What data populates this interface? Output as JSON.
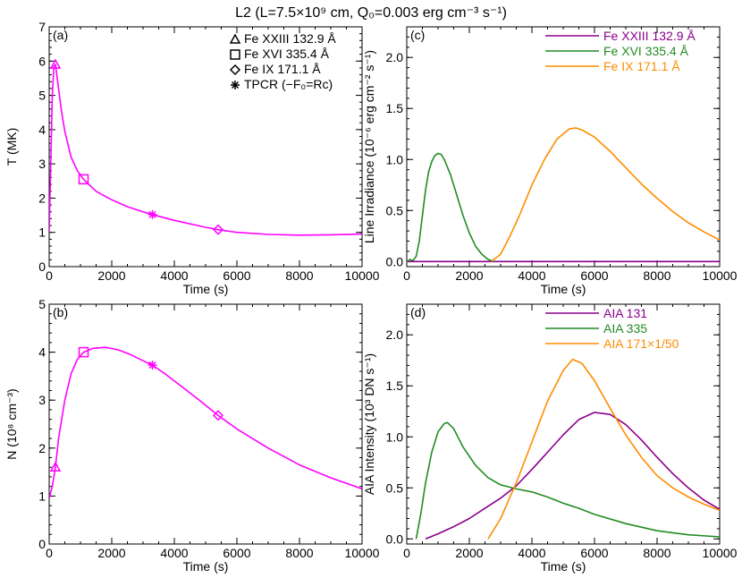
{
  "chart_data": {
    "type": "line",
    "title": "L2 (L=7.5×10⁹ cm, Q₀=0.003 erg cm⁻³ s⁻¹)",
    "panels": [
      {
        "label": "(a)",
        "xlabel": "Time (s)",
        "ylabel": "T (MK)",
        "xlim": [
          0,
          10000
        ],
        "ylim": [
          0,
          7
        ],
        "xticks": [
          0,
          2000,
          4000,
          6000,
          8000,
          10000
        ],
        "yticks": [
          0,
          1,
          2,
          3,
          4,
          5,
          6,
          7
        ],
        "series": [
          {
            "name": "T",
            "color": "#ff00ff",
            "x": [
              0,
              50,
              100,
              150,
              200,
              300,
              400,
              500,
              700,
              900,
              1100,
              1500,
              2000,
              2500,
              3000,
              3300,
              4000,
              5000,
              5400,
              6000,
              7000,
              8000,
              9000,
              10000
            ],
            "y": [
              1.0,
              3.0,
              5.0,
              5.85,
              5.9,
              5.2,
              4.5,
              3.95,
              3.2,
              2.8,
              2.55,
              2.2,
              1.95,
              1.75,
              1.6,
              1.52,
              1.35,
              1.15,
              1.08,
              1.0,
              0.94,
              0.92,
              0.93,
              0.95
            ]
          }
        ],
        "markers": [
          {
            "name": "Fe XXIII 132.9 Å",
            "symbol": "triangle",
            "x": 200,
            "y": 5.9
          },
          {
            "name": "Fe XVI 335.4 Å",
            "symbol": "square",
            "x": 1100,
            "y": 2.55
          },
          {
            "name": "Fe IX 171.1 Å",
            "symbol": "diamond",
            "x": 5400,
            "y": 1.08
          },
          {
            "name": "TPCR (−F₀=Rc)",
            "symbol": "asterisk",
            "x": 3300,
            "y": 1.52
          }
        ],
        "legend": [
          {
            "label": "Fe XXIII 132.9 Å",
            "symbol": "triangle"
          },
          {
            "label": "Fe XVI 335.4 Å",
            "symbol": "square"
          },
          {
            "label": "Fe IX 171.1 Å",
            "symbol": "diamond"
          },
          {
            "label": "TPCR (−F₀=Rc)",
            "symbol": "asterisk"
          }
        ]
      },
      {
        "label": "(c)",
        "xlabel": "Time (s)",
        "ylabel": "Line Irradiance (10⁻⁶ erg cm⁻² s⁻¹)",
        "xlim": [
          0,
          10000
        ],
        "ylim": [
          -0.05,
          2.3
        ],
        "xticks": [
          0,
          2000,
          4000,
          6000,
          8000,
          10000
        ],
        "yticks": [
          0.0,
          0.5,
          1.0,
          1.5,
          2.0
        ],
        "series": [
          {
            "name": "Fe XXIII 132.9 Å",
            "color": "#8b008b",
            "x": [
              0,
              2000,
              4000,
              6000,
              8000,
              10000
            ],
            "y": [
              0,
              0,
              0,
              0,
              0,
              0
            ]
          },
          {
            "name": "Fe XVI 335.4 Å",
            "color": "#228b22",
            "x": [
              0,
              100,
              200,
              300,
              400,
              500,
              600,
              700,
              800,
              900,
              1000,
              1100,
              1200,
              1400,
              1600,
              1800,
              2000,
              2200,
              2400,
              2600,
              2800
            ],
            "y": [
              0,
              0.02,
              0.01,
              0.05,
              0.2,
              0.45,
              0.7,
              0.88,
              0.98,
              1.04,
              1.06,
              1.05,
              1.0,
              0.85,
              0.65,
              0.45,
              0.28,
              0.15,
              0.07,
              0.02,
              0
            ]
          },
          {
            "name": "Fe IX 171.1 Å",
            "color": "#ff8c00",
            "x": [
              2700,
              3000,
              3300,
              3600,
              4000,
              4400,
              4800,
              5200,
              5400,
              5600,
              6000,
              6500,
              7000,
              7500,
              8000,
              8500,
              9000,
              9500,
              10000
            ],
            "y": [
              0,
              0.07,
              0.25,
              0.45,
              0.75,
              1.0,
              1.2,
              1.3,
              1.31,
              1.29,
              1.22,
              1.08,
              0.92,
              0.76,
              0.62,
              0.49,
              0.38,
              0.29,
              0.21
            ]
          }
        ],
        "legend": [
          {
            "label": "Fe XXIII 132.9 Å",
            "color": "#8b008b"
          },
          {
            "label": "Fe XVI 335.4 Å",
            "color": "#228b22"
          },
          {
            "label": "Fe IX 171.1 Å",
            "color": "#ff8c00"
          }
        ]
      },
      {
        "label": "(b)",
        "xlabel": "Time (s)",
        "ylabel": "N (10⁸ cm⁻³)",
        "xlim": [
          0,
          10000
        ],
        "ylim": [
          0,
          5
        ],
        "xticks": [
          0,
          2000,
          4000,
          6000,
          8000,
          10000
        ],
        "yticks": [
          0,
          1,
          2,
          3,
          4,
          5
        ],
        "series": [
          {
            "name": "N",
            "color": "#ff00ff",
            "x": [
              0,
              100,
              200,
              300,
              500,
              700,
              900,
              1100,
              1400,
              1800,
              2200,
              2600,
              3000,
              3300,
              3700,
              4200,
              4800,
              5400,
              6000,
              7000,
              8000,
              9000,
              10000
            ],
            "y": [
              0.95,
              1.2,
              1.6,
              2.2,
              3.0,
              3.55,
              3.85,
              4.0,
              4.08,
              4.1,
              4.05,
              3.95,
              3.82,
              3.73,
              3.55,
              3.3,
              3.0,
              2.68,
              2.4,
              2.0,
              1.65,
              1.38,
              1.15
            ]
          }
        ],
        "markers": [
          {
            "name": "Fe XXIII 132.9 Å",
            "symbol": "triangle",
            "x": 200,
            "y": 1.6
          },
          {
            "name": "Fe XVI 335.4 Å",
            "symbol": "square",
            "x": 1100,
            "y": 4.0
          },
          {
            "name": "TPCR (−F₀=Rc)",
            "symbol": "asterisk",
            "x": 3300,
            "y": 3.73
          },
          {
            "name": "Fe IX 171.1 Å",
            "symbol": "diamond",
            "x": 5400,
            "y": 2.68
          }
        ]
      },
      {
        "label": "(d)",
        "xlabel": "Time (s)",
        "ylabel": "AIA Intensity (10³ DN s⁻¹)",
        "xlim": [
          0,
          10000
        ],
        "ylim": [
          -0.05,
          2.3
        ],
        "xticks": [
          0,
          2000,
          4000,
          6000,
          8000,
          10000
        ],
        "yticks": [
          0.0,
          0.5,
          1.0,
          1.5,
          2.0
        ],
        "series": [
          {
            "name": "AIA 131",
            "color": "#8b008b",
            "x": [
              600,
              1000,
              1500,
              2000,
              2500,
              3000,
              3500,
              4000,
              4500,
              5000,
              5500,
              6000,
              6500,
              7000,
              7500,
              8000,
              8500,
              9000,
              9500,
              10000
            ],
            "y": [
              0,
              0.05,
              0.12,
              0.2,
              0.3,
              0.4,
              0.52,
              0.68,
              0.85,
              1.02,
              1.17,
              1.24,
              1.22,
              1.12,
              0.97,
              0.8,
              0.64,
              0.5,
              0.38,
              0.29
            ]
          },
          {
            "name": "AIA 335",
            "color": "#228b22",
            "x": [
              300,
              450,
              600,
              800,
              1000,
              1200,
              1300,
              1500,
              1800,
              2200,
              2600,
              3000,
              3500,
              4000,
              4500,
              5000,
              5500,
              6000,
              7000,
              8000,
              9000,
              10000
            ],
            "y": [
              0,
              0.25,
              0.55,
              0.85,
              1.05,
              1.13,
              1.14,
              1.08,
              0.9,
              0.72,
              0.6,
              0.53,
              0.49,
              0.46,
              0.41,
              0.35,
              0.3,
              0.24,
              0.15,
              0.08,
              0.04,
              0.02
            ]
          },
          {
            "name": "AIA 171×1/50",
            "color": "#ff8c00",
            "x": [
              2600,
              3000,
              3500,
              4000,
              4500,
              5000,
              5300,
              5600,
              6000,
              6500,
              7000,
              7500,
              8000,
              8500,
              9000,
              9500,
              10000
            ],
            "y": [
              0,
              0.2,
              0.55,
              0.95,
              1.35,
              1.65,
              1.76,
              1.72,
              1.55,
              1.28,
              1.02,
              0.8,
              0.62,
              0.5,
              0.41,
              0.34,
              0.28
            ]
          }
        ],
        "legend": [
          {
            "label": "AIA 131",
            "color": "#8b008b"
          },
          {
            "label": "AIA 335",
            "color": "#228b22"
          },
          {
            "label": "AIA 171×1/50",
            "color": "#ff8c00"
          }
        ]
      }
    ]
  }
}
